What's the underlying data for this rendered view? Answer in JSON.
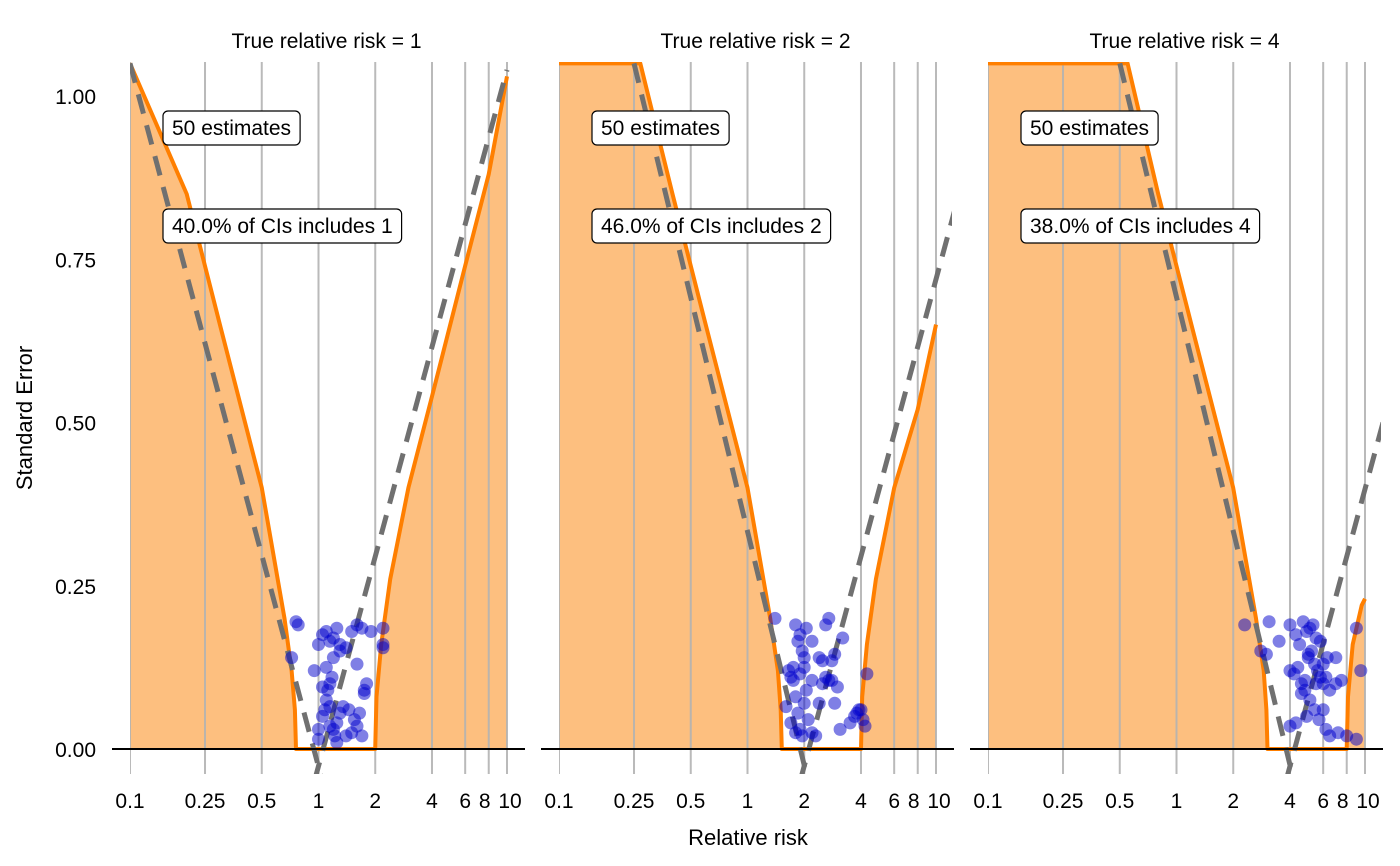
{
  "figure": {
    "xlabel": "Relative risk",
    "ylabel": "Standard Error"
  },
  "colors": {
    "region_fill": "#fdbf7f",
    "boundary_line": "#ff7f00",
    "dashed_line": "#707070",
    "gridline": "#b3b3b3",
    "point": "#0000cc",
    "zero_line": "#000000"
  },
  "chart_data": {
    "type": "scatter",
    "x_scale": "log",
    "xlim": [
      0.1,
      10
    ],
    "ylim": [
      0,
      1
    ],
    "x_ticks": [
      0.1,
      0.25,
      0.5,
      1,
      2,
      4,
      6,
      8,
      10
    ],
    "x_tick_labels": [
      "0.1",
      "0.25",
      "0.5",
      "1",
      "2",
      "4",
      "6",
      "8",
      "10"
    ],
    "y_ticks": [
      0,
      0.25,
      0.5,
      0.75,
      1
    ],
    "y_tick_labels": [
      "0.00",
      "0.25",
      "0.50",
      "0.75",
      "1.00"
    ],
    "panels": [
      {
        "title": "True relative risk = 1",
        "true_rr": 1,
        "count_label": "50 estimates",
        "coverage_label": "40.0% of CIs includes 1",
        "points": [
          [
            0.78,
            0.19
          ],
          [
            0.72,
            0.14
          ],
          [
            0.76,
            0.195
          ],
          [
            0.95,
            0.12
          ],
          [
            1.0,
            0.16
          ],
          [
            1.05,
            0.175
          ],
          [
            1.1,
            0.18
          ],
          [
            1.15,
            0.165
          ],
          [
            1.2,
            0.17
          ],
          [
            1.25,
            0.185
          ],
          [
            1.3,
            0.16
          ],
          [
            1.4,
            0.155
          ],
          [
            1.5,
            0.18
          ],
          [
            1.6,
            0.19
          ],
          [
            1.7,
            0.185
          ],
          [
            1.9,
            0.18
          ],
          [
            2.2,
            0.185
          ],
          [
            2.2,
            0.16
          ],
          [
            2.2,
            0.155
          ],
          [
            1.0,
            0.015
          ],
          [
            1.05,
            0.05
          ],
          [
            1.08,
            0.06
          ],
          [
            1.1,
            0.075
          ],
          [
            1.12,
            0.09
          ],
          [
            1.15,
            0.1
          ],
          [
            1.18,
            0.11
          ],
          [
            1.2,
            0.03
          ],
          [
            1.22,
            0.02
          ],
          [
            1.25,
            0.04
          ],
          [
            1.3,
            0.055
          ],
          [
            1.35,
            0.065
          ],
          [
            1.4,
            0.02
          ],
          [
            1.5,
            0.025
          ],
          [
            1.55,
            0.045
          ],
          [
            1.6,
            0.035
          ],
          [
            1.65,
            0.055
          ],
          [
            1.7,
            0.02
          ],
          [
            1.75,
            0.085
          ],
          [
            1.8,
            0.1
          ],
          [
            1.2,
            0.14
          ],
          [
            1.3,
            0.15
          ],
          [
            1.1,
            0.125
          ],
          [
            1.6,
            0.13
          ],
          [
            1.05,
            0.095
          ],
          [
            1.25,
            0.01
          ],
          [
            1.15,
            0.035
          ],
          [
            1.45,
            0.06
          ],
          [
            1.75,
            0.09
          ],
          [
            1.0,
            0.03
          ],
          [
            1.15,
            0.065
          ]
        ],
        "orange_left": [
          [
            0.1,
            1.05
          ],
          [
            0.2,
            0.85
          ],
          [
            0.3,
            0.65
          ],
          [
            0.5,
            0.4
          ],
          [
            0.66,
            0.2
          ],
          [
            0.72,
            0.12
          ],
          [
            0.75,
            0.06
          ],
          [
            0.76,
            0.0
          ]
        ],
        "orange_right": [
          [
            2.0,
            0.0
          ],
          [
            2.03,
            0.08
          ],
          [
            2.15,
            0.16
          ],
          [
            2.4,
            0.26
          ],
          [
            3.0,
            0.4
          ],
          [
            4.0,
            0.54
          ],
          [
            6.0,
            0.74
          ],
          [
            8.0,
            0.88
          ],
          [
            10.0,
            1.03
          ]
        ],
        "dashed_left": [
          [
            0.1,
            1.05
          ],
          [
            1.05,
            -0.05
          ]
        ],
        "dashed_right": [
          [
            0.95,
            -0.05
          ],
          [
            10.0,
            1.04
          ]
        ]
      },
      {
        "title": "True relative risk = 2",
        "true_rr": 2,
        "count_label": "50 estimates",
        "coverage_label": "46.0% of CIs includes 2",
        "points": [
          [
            1.4,
            0.2
          ],
          [
            1.65,
            0.12
          ],
          [
            1.7,
            0.11
          ],
          [
            1.75,
            0.125
          ],
          [
            1.8,
            0.19
          ],
          [
            1.85,
            0.165
          ],
          [
            1.9,
            0.175
          ],
          [
            1.95,
            0.15
          ],
          [
            2.0,
            0.14
          ],
          [
            2.05,
            0.185
          ],
          [
            2.2,
            0.165
          ],
          [
            2.4,
            0.14
          ],
          [
            2.6,
            0.19
          ],
          [
            2.7,
            0.2
          ],
          [
            2.9,
            0.145
          ],
          [
            3.2,
            0.17
          ],
          [
            2.5,
            0.135
          ],
          [
            2.8,
            0.135
          ],
          [
            1.6,
            0.065
          ],
          [
            1.7,
            0.04
          ],
          [
            1.75,
            0.105
          ],
          [
            1.8,
            0.08
          ],
          [
            1.85,
            0.055
          ],
          [
            1.9,
            0.03
          ],
          [
            1.95,
            0.02
          ],
          [
            2.0,
            0.07
          ],
          [
            2.1,
            0.045
          ],
          [
            2.2,
            0.025
          ],
          [
            2.3,
            0.02
          ],
          [
            2.5,
            0.1
          ],
          [
            2.6,
            0.11
          ],
          [
            2.8,
            0.105
          ],
          [
            2.9,
            0.07
          ],
          [
            3.1,
            0.03
          ],
          [
            3.5,
            0.04
          ],
          [
            3.8,
            0.055
          ],
          [
            4.0,
            0.06
          ],
          [
            4.2,
            0.035
          ],
          [
            4.3,
            0.115
          ],
          [
            4.1,
            0.045
          ],
          [
            3.9,
            0.06
          ],
          [
            2.4,
            0.07
          ],
          [
            1.9,
            0.115
          ],
          [
            2.0,
            0.125
          ],
          [
            2.7,
            0.105
          ],
          [
            2.2,
            0.105
          ],
          [
            3.0,
            0.095
          ],
          [
            1.8,
            0.025
          ],
          [
            2.05,
            0.09
          ],
          [
            3.7,
            0.05
          ]
        ],
        "orange_left": [
          [
            0.1,
            1.05
          ],
          [
            0.27,
            1.05
          ],
          [
            0.4,
            0.85
          ],
          [
            0.6,
            0.65
          ],
          [
            1.0,
            0.4
          ],
          [
            1.32,
            0.2
          ],
          [
            1.45,
            0.12
          ],
          [
            1.5,
            0.06
          ],
          [
            1.52,
            0.0
          ]
        ],
        "orange_right": [
          [
            4.0,
            0.0
          ],
          [
            4.06,
            0.08
          ],
          [
            4.3,
            0.16
          ],
          [
            4.8,
            0.26
          ],
          [
            6.0,
            0.4
          ],
          [
            8.0,
            0.52
          ],
          [
            10.0,
            0.65
          ]
        ],
        "dashed_left": [
          [
            0.25,
            1.05
          ],
          [
            2.1,
            -0.05
          ]
        ],
        "dashed_right": [
          [
            1.9,
            -0.05
          ],
          [
            20.0,
            1.04
          ]
        ]
      },
      {
        "title": "True relative risk = 4",
        "true_rr": 4,
        "count_label": "50 estimates",
        "coverage_label": "38.0% of CIs includes 4",
        "points": [
          [
            2.3,
            0.19
          ],
          [
            2.8,
            0.15
          ],
          [
            3.0,
            0.145
          ],
          [
            3.1,
            0.195
          ],
          [
            3.5,
            0.165
          ],
          [
            4.0,
            0.19
          ],
          [
            4.3,
            0.175
          ],
          [
            4.5,
            0.16
          ],
          [
            4.7,
            0.195
          ],
          [
            4.9,
            0.18
          ],
          [
            5.1,
            0.185
          ],
          [
            5.3,
            0.19
          ],
          [
            5.5,
            0.17
          ],
          [
            5.8,
            0.165
          ],
          [
            6.0,
            0.13
          ],
          [
            6.3,
            0.14
          ],
          [
            7.0,
            0.14
          ],
          [
            9.0,
            0.185
          ],
          [
            4.0,
            0.12
          ],
          [
            4.2,
            0.115
          ],
          [
            4.4,
            0.125
          ],
          [
            4.6,
            0.1
          ],
          [
            4.8,
            0.09
          ],
          [
            5.0,
            0.145
          ],
          [
            5.2,
            0.15
          ],
          [
            5.4,
            0.13
          ],
          [
            5.6,
            0.12
          ],
          [
            5.8,
            0.11
          ],
          [
            6.0,
            0.1
          ],
          [
            6.5,
            0.09
          ],
          [
            7.0,
            0.1
          ],
          [
            7.5,
            0.105
          ],
          [
            8.0,
            0.02
          ],
          [
            9.0,
            0.015
          ],
          [
            9.5,
            0.12
          ],
          [
            4.0,
            0.035
          ],
          [
            4.3,
            0.04
          ],
          [
            4.6,
            0.085
          ],
          [
            4.9,
            0.05
          ],
          [
            5.1,
            0.075
          ],
          [
            5.4,
            0.06
          ],
          [
            5.7,
            0.045
          ],
          [
            6.0,
            0.06
          ],
          [
            6.2,
            0.03
          ],
          [
            6.5,
            0.02
          ],
          [
            7.2,
            0.025
          ],
          [
            5.0,
            0.14
          ],
          [
            5.5,
            0.1
          ],
          [
            4.8,
            0.105
          ],
          [
            6.2,
            0.11
          ]
        ],
        "orange_left": [
          [
            0.1,
            1.05
          ],
          [
            0.55,
            1.05
          ],
          [
            0.8,
            0.85
          ],
          [
            1.2,
            0.65
          ],
          [
            2.0,
            0.4
          ],
          [
            2.64,
            0.2
          ],
          [
            2.9,
            0.12
          ],
          [
            3.0,
            0.06
          ],
          [
            3.04,
            0.0
          ]
        ],
        "orange_right": [
          [
            8.0,
            0.0
          ],
          [
            8.12,
            0.08
          ],
          [
            8.6,
            0.16
          ],
          [
            9.6,
            0.22
          ],
          [
            10.0,
            0.23
          ]
        ],
        "dashed_left": [
          [
            0.5,
            1.05
          ],
          [
            4.2,
            -0.05
          ]
        ],
        "dashed_right": [
          [
            3.8,
            -0.05
          ],
          [
            40.0,
            1.04
          ]
        ]
      }
    ]
  }
}
